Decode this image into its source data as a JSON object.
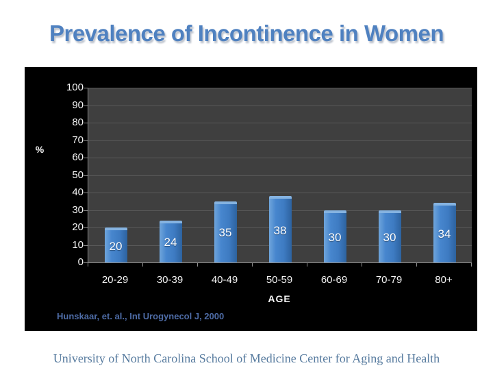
{
  "slide": {
    "title": "Prevalence of Incontinence in Women",
    "citation": "Hunskaar, et. al., Int Urogynecol J, 2000",
    "footer": "University of North Carolina School of Medicine Center for Aging and Health"
  },
  "colors": {
    "title_blue": "#4f81c0",
    "panel_bg": "#000000",
    "plot_bg": "#3f3f3f",
    "gridline": "#5a5a5a",
    "bar_face": "#3e7bc2",
    "bar_highlight": "#85b3e1",
    "bar_shadow": "#2d639f",
    "axis_text": "#f5f5f5",
    "citation_blue": "#4e6ca6",
    "footer_blue": "#567a9e"
  },
  "chart_data": {
    "type": "bar",
    "title": "",
    "categories": [
      "20-29",
      "30-39",
      "40-49",
      "50-59",
      "60-69",
      "70-79",
      "80+"
    ],
    "values": [
      20,
      24,
      35,
      38,
      30,
      30,
      34
    ],
    "xlabel": "AGE",
    "ylabel": "%",
    "ylim": [
      0,
      100
    ],
    "yticks": [
      100,
      90,
      80,
      70,
      60,
      50,
      40,
      30,
      20,
      10,
      0
    ],
    "grid": true,
    "legend": "none",
    "bar_labels_visible": true
  }
}
